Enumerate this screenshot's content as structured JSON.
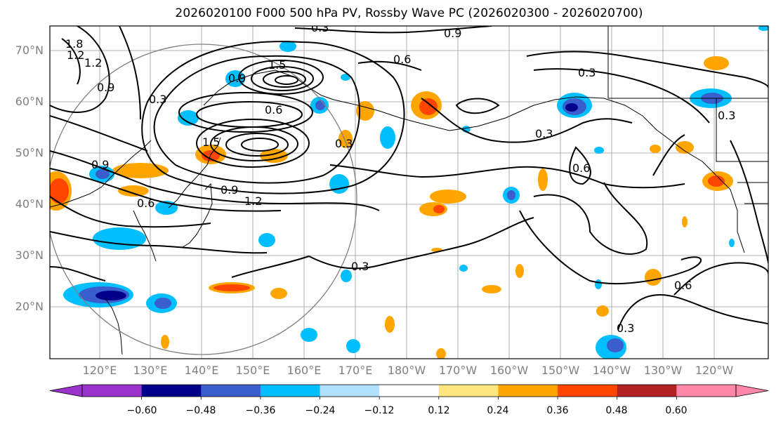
{
  "title": "2026020100 F000 500 hPa PV, Rossby Wave PC (2026020300 - 2026020700)",
  "lat_labels": [
    "70°N",
    "60°N",
    "50°N",
    "40°N",
    "30°N",
    "20°N"
  ],
  "lon_labels": [
    "120°E",
    "130°E",
    "140°E",
    "150°E",
    "160°E",
    "170°E",
    "180°W",
    "170°W",
    "160°W",
    "150°W",
    "140°W",
    "130°W",
    "120°W"
  ],
  "contour_labels": [
    "0.3",
    "0.9",
    "1.5",
    "1.2",
    "0.6",
    "0.9",
    "1.5",
    "0.3",
    "0.6",
    "0.3",
    "0.3",
    "0.3",
    "0.6",
    "0.9",
    "1.2",
    "0.6",
    "0.3",
    "1.2",
    "1.8",
    "0.9",
    "0.3",
    "0.6",
    "0.3",
    "0.9"
  ],
  "colorbar": {
    "colors": [
      "#9933cc",
      "#00008b",
      "#3a5fcd",
      "#00bfff",
      "#b0e2ff",
      "#ffffff",
      "#ffe680",
      "#ffa500",
      "#ff4500",
      "#b22222",
      "#ff88aa"
    ],
    "tick_labels": [
      "−0.60",
      "−0.48",
      "−0.36",
      "−0.24",
      "−0.12",
      "0.12",
      "0.24",
      "0.36",
      "0.48",
      "0.60"
    ]
  }
}
